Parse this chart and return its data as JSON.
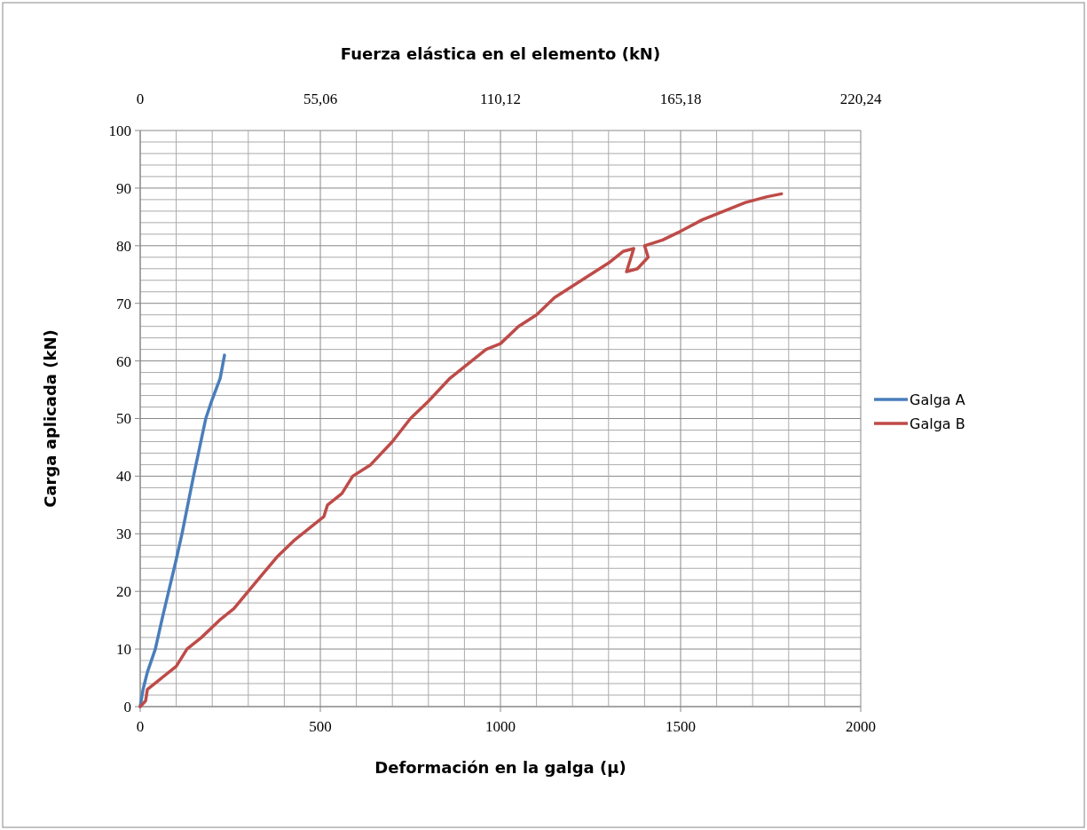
{
  "chart_data": {
    "type": "line",
    "x2label": "Fuerza  elástica en el elemento (kN)",
    "xlabel": "Deformación en la galga (µ)",
    "ylabel": "Carga aplicada (kN)",
    "xlim": [
      0,
      2000
    ],
    "xticks": [
      0,
      {
        "value": 100,
        "label": null
      },
      {
        "value": 200,
        "label": null
      },
      {
        "value": 300,
        "label": null
      },
      {
        "value": 400,
        "label": null
      },
      500,
      {
        "value": 600,
        "label": null
      },
      {
        "value": 700,
        "label": null
      },
      {
        "value": 800,
        "label": null
      },
      {
        "value": 900,
        "label": null
      },
      1000,
      {
        "value": 1100,
        "label": null
      },
      {
        "value": 1200,
        "label": null
      },
      {
        "value": 1300,
        "label": null
      },
      {
        "value": 1400,
        "label": null
      },
      1500,
      {
        "value": 1600,
        "label": null
      },
      {
        "value": 1700,
        "label": null
      },
      {
        "value": 1800,
        "label": null
      },
      {
        "value": 1900,
        "label": null
      },
      2000
    ],
    "x2lim": [
      0,
      220.24
    ],
    "x2ticks": [
      {
        "value": 0,
        "label": "0"
      },
      {
        "value": 55.06,
        "label": "55,06"
      },
      {
        "value": 110.12,
        "label": "110,12"
      },
      {
        "value": 165.18,
        "label": "165,18"
      },
      {
        "value": 220.24,
        "label": "220,24"
      }
    ],
    "ylim": [
      0,
      100
    ],
    "yticks": [
      0,
      {
        "value": 2,
        "label": null
      },
      {
        "value": 4,
        "label": null
      },
      {
        "value": 6,
        "label": null
      },
      {
        "value": 8,
        "label": null
      },
      10,
      {
        "value": 12,
        "label": null
      },
      {
        "value": 14,
        "label": null
      },
      {
        "value": 16,
        "label": null
      },
      {
        "value": 18,
        "label": null
      },
      20,
      {
        "value": 22,
        "label": null
      },
      {
        "value": 24,
        "label": null
      },
      {
        "value": 26,
        "label": null
      },
      {
        "value": 28,
        "label": null
      },
      30,
      {
        "value": 32,
        "label": null
      },
      {
        "value": 34,
        "label": null
      },
      {
        "value": 36,
        "label": null
      },
      {
        "value": 38,
        "label": null
      },
      40,
      {
        "value": 42,
        "label": null
      },
      {
        "value": 44,
        "label": null
      },
      {
        "value": 46,
        "label": null
      },
      {
        "value": 48,
        "label": null
      },
      50,
      {
        "value": 52,
        "label": null
      },
      {
        "value": 54,
        "label": null
      },
      {
        "value": 56,
        "label": null
      },
      {
        "value": 58,
        "label": null
      },
      60,
      {
        "value": 62,
        "label": null
      },
      {
        "value": 64,
        "label": null
      },
      {
        "value": 66,
        "label": null
      },
      {
        "value": 68,
        "label": null
      },
      70,
      {
        "value": 72,
        "label": null
      },
      {
        "value": 74,
        "label": null
      },
      {
        "value": 76,
        "label": null
      },
      {
        "value": 78,
        "label": null
      },
      80,
      {
        "value": 82,
        "label": null
      },
      {
        "value": 84,
        "label": null
      },
      {
        "value": 86,
        "label": null
      },
      {
        "value": 88,
        "label": null
      },
      90,
      {
        "value": 92,
        "label": null
      },
      {
        "value": 94,
        "label": null
      },
      {
        "value": 96,
        "label": null
      },
      {
        "value": 98,
        "label": null
      },
      100
    ],
    "grid": true,
    "legend": "right",
    "marker": "none",
    "line_style": "solid",
    "series": [
      {
        "name": "Galga A",
        "color": "#4a7ebb",
        "x": [
          0,
          8,
          20,
          42,
          60,
          79,
          98,
          116,
          132,
          148,
          165,
          182,
          198,
          210,
          222,
          234
        ],
        "values": [
          0,
          3,
          6,
          10,
          15,
          20,
          25,
          30,
          35,
          40,
          45,
          50,
          53,
          55,
          57,
          61
        ]
      },
      {
        "name": "Galga B",
        "color": "#be4b48",
        "x": [
          0,
          15,
          20,
          60,
          100,
          130,
          170,
          220,
          260,
          300,
          340,
          380,
          430,
          470,
          510,
          520,
          560,
          590,
          640,
          700,
          750,
          800,
          860,
          900,
          960,
          1000,
          1050,
          1100,
          1150,
          1200,
          1250,
          1300,
          1340,
          1370,
          1350,
          1380,
          1410,
          1400,
          1450,
          1500,
          1560,
          1620,
          1680,
          1740,
          1780
        ],
        "values": [
          0,
          1,
          3,
          5,
          7,
          10,
          12,
          15,
          17,
          20,
          23,
          26,
          29,
          31,
          33,
          35,
          37,
          40,
          42,
          46,
          50,
          53,
          57,
          59,
          62,
          63,
          66,
          68,
          71,
          73,
          75,
          77,
          79,
          79.5,
          75.5,
          76,
          78,
          80,
          81,
          82.5,
          84.5,
          86,
          87.5,
          88.5,
          89
        ]
      }
    ]
  }
}
